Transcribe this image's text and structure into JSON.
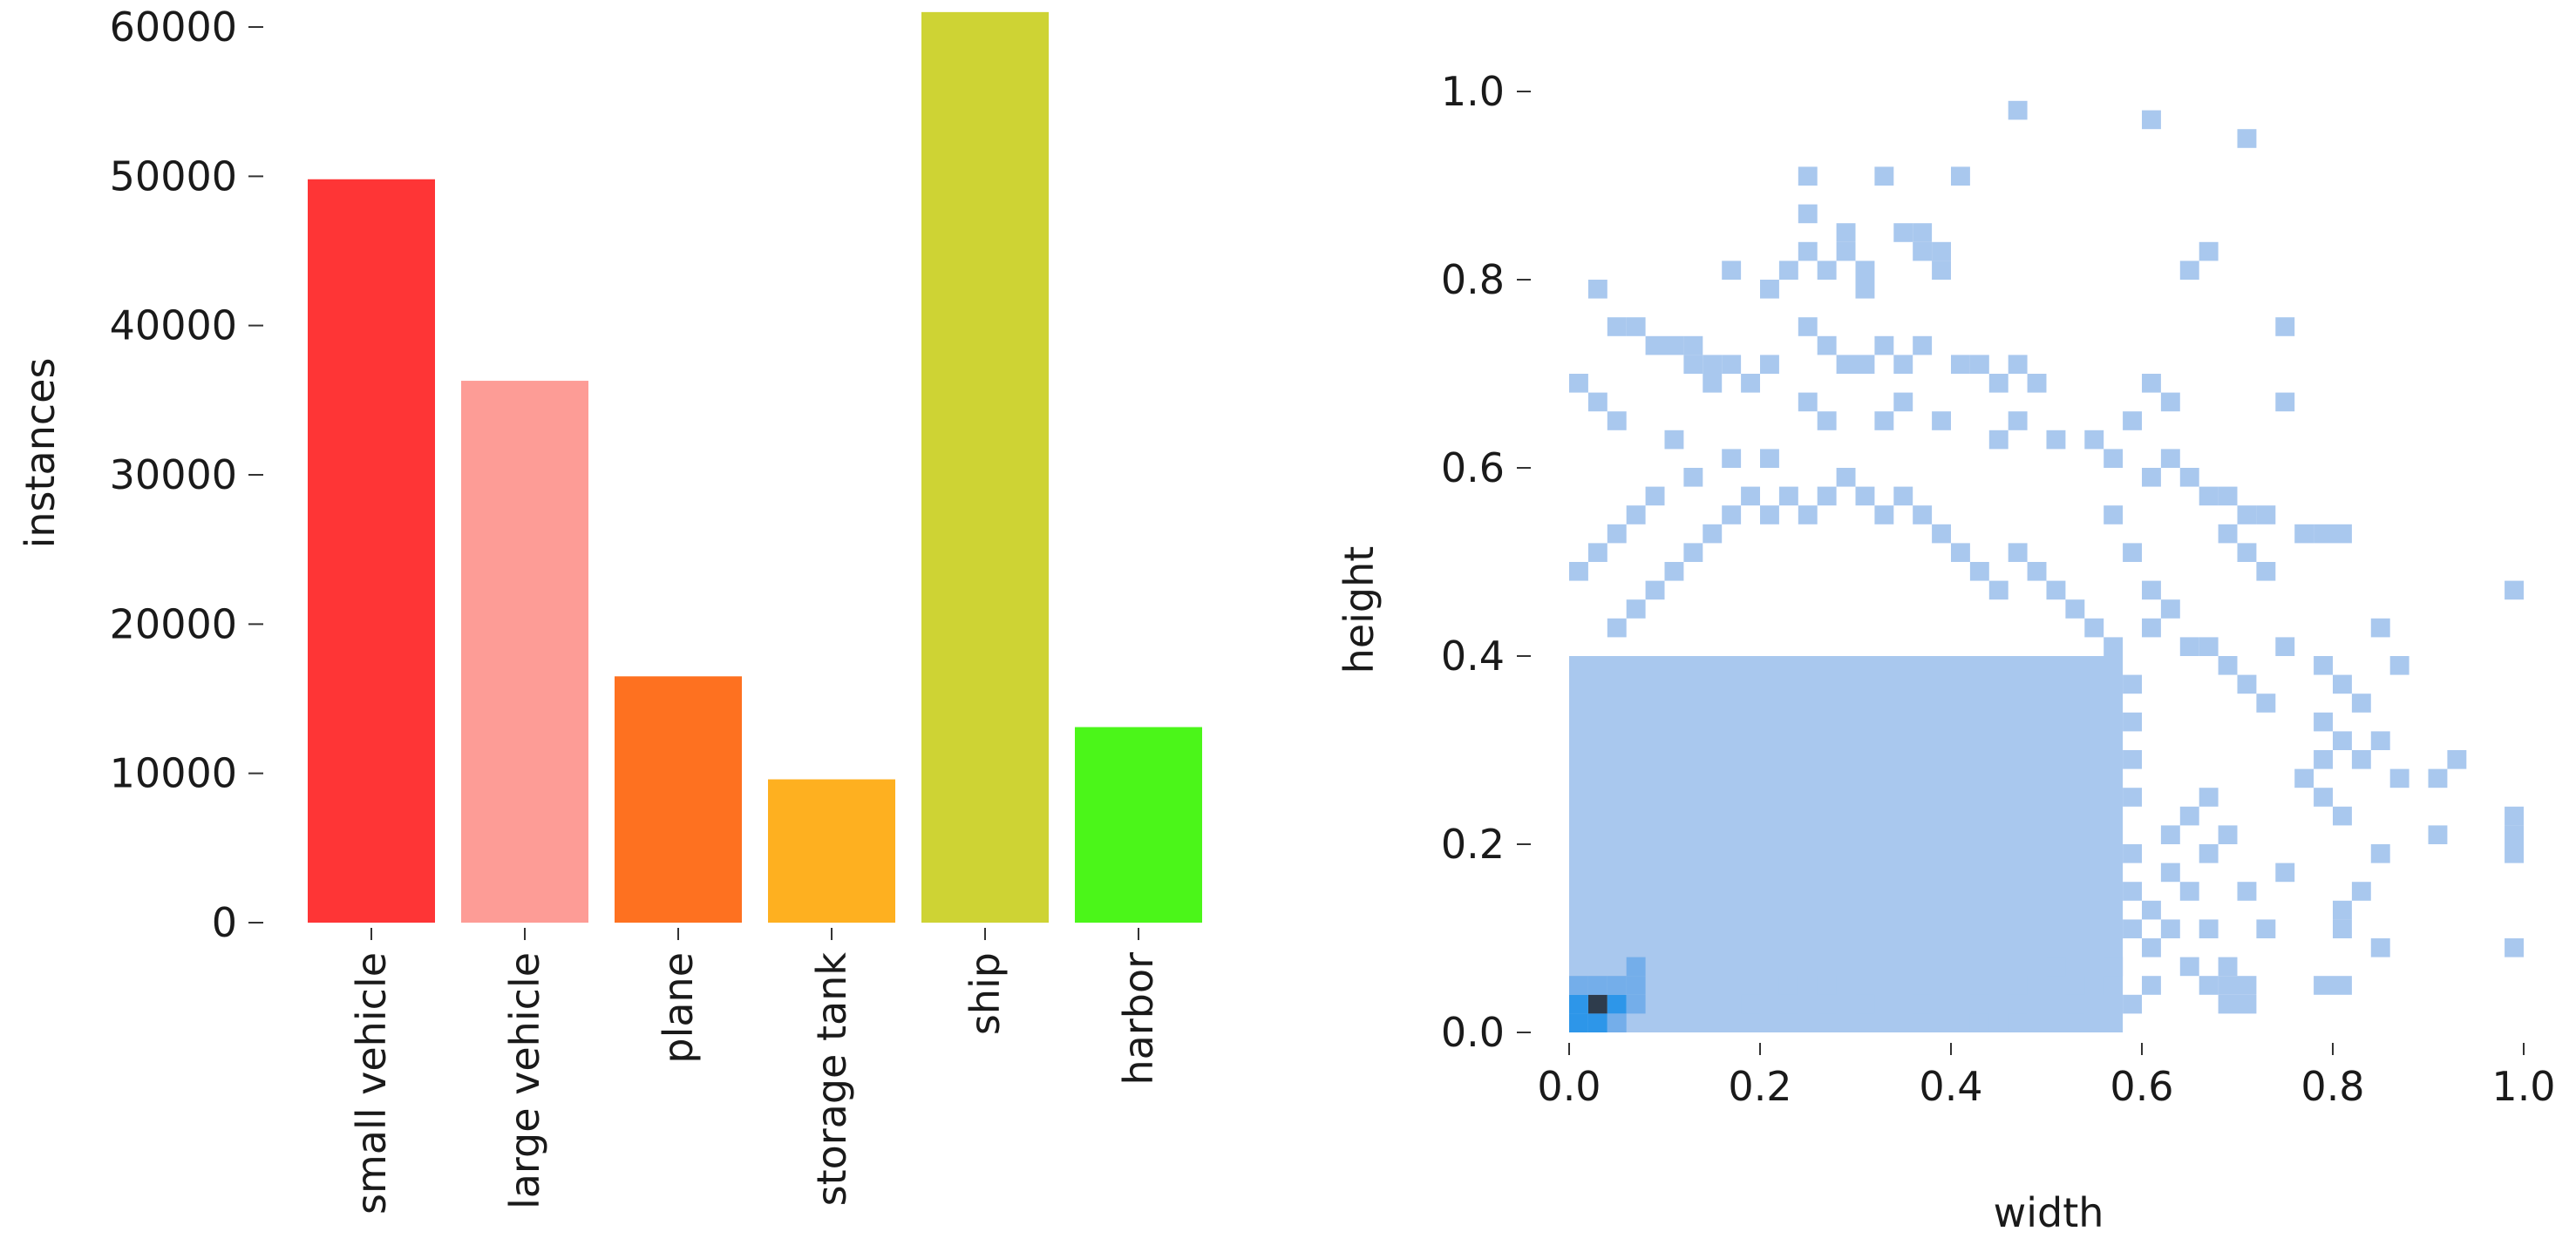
{
  "chart_data": [
    {
      "type": "bar",
      "ylabel": "instances",
      "xlabel": "",
      "ylim": [
        0,
        60000
      ],
      "yticks": [
        "0",
        "10000",
        "20000",
        "30000",
        "40000",
        "50000",
        "60000"
      ],
      "grid": false,
      "categories": [
        "small vehicle",
        "large vehicle",
        "plane",
        "storage tank",
        "ship",
        "harbor"
      ],
      "values": [
        49800,
        36300,
        16500,
        9600,
        61000,
        13100
      ],
      "colors": [
        "#fe3536",
        "#fd9c96",
        "#fe7120",
        "#feb020",
        "#ced334",
        "#4bf619"
      ]
    },
    {
      "type": "heatmap",
      "xlabel": "width",
      "ylabel": "height",
      "xlim": [
        0,
        1
      ],
      "ylim": [
        0,
        1
      ],
      "xticks": [
        "0.0",
        "0.2",
        "0.4",
        "0.6",
        "0.8",
        "1.0"
      ],
      "yticks": [
        "0.0",
        "0.2",
        "0.4",
        "0.6",
        "0.8",
        "1.0"
      ],
      "grid": false,
      "bins": 50,
      "colors": {
        "low": "#a9c8ee",
        "mid": "#74aeea",
        "high": "#2d96e9",
        "peak": "#2e3c4c"
      },
      "dense_region": {
        "x": [
          0,
          0.58
        ],
        "y": [
          0,
          0.4
        ],
        "density": "low"
      },
      "hotspot": [
        {
          "x": 0.03,
          "y": 0.03,
          "density": "peak"
        },
        {
          "x": 0.05,
          "y": 0.03,
          "density": "high"
        },
        {
          "x": 0.01,
          "y": 0.01,
          "density": "high"
        },
        {
          "x": 0.03,
          "y": 0.05,
          "density": "mid"
        },
        {
          "x": 0.05,
          "y": 0.05,
          "density": "mid"
        },
        {
          "x": 0.07,
          "y": 0.05,
          "density": "mid"
        },
        {
          "x": 0.01,
          "y": 0.03,
          "density": "high"
        },
        {
          "x": 0.03,
          "y": 0.01,
          "density": "high"
        },
        {
          "x": 0.05,
          "y": 0.01,
          "density": "mid"
        },
        {
          "x": 0.07,
          "y": 0.03,
          "density": "mid"
        },
        {
          "x": 0.01,
          "y": 0.05,
          "density": "mid"
        },
        {
          "x": 0.07,
          "y": 0.07,
          "density": "mid"
        }
      ],
      "sparse_cells": [
        [
          0.47,
          0.98
        ],
        [
          0.61,
          0.97
        ],
        [
          0.71,
          0.95
        ],
        [
          0.33,
          0.91
        ],
        [
          0.41,
          0.91
        ],
        [
          0.25,
          0.91
        ],
        [
          0.25,
          0.87
        ],
        [
          0.35,
          0.85
        ],
        [
          0.37,
          0.85
        ],
        [
          0.37,
          0.83
        ],
        [
          0.39,
          0.83
        ],
        [
          0.39,
          0.81
        ],
        [
          0.29,
          0.85
        ],
        [
          0.29,
          0.83
        ],
        [
          0.31,
          0.81
        ],
        [
          0.31,
          0.79
        ],
        [
          0.25,
          0.83
        ],
        [
          0.17,
          0.81
        ],
        [
          0.23,
          0.81
        ],
        [
          0.21,
          0.79
        ],
        [
          0.27,
          0.81
        ],
        [
          0.67,
          0.83
        ],
        [
          0.65,
          0.81
        ],
        [
          0.03,
          0.79
        ],
        [
          0.05,
          0.75
        ],
        [
          0.07,
          0.75
        ],
        [
          0.09,
          0.73
        ],
        [
          0.11,
          0.73
        ],
        [
          0.13,
          0.73
        ],
        [
          0.13,
          0.71
        ],
        [
          0.15,
          0.71
        ],
        [
          0.17,
          0.71
        ],
        [
          0.15,
          0.69
        ],
        [
          0.19,
          0.69
        ],
        [
          0.21,
          0.71
        ],
        [
          0.25,
          0.75
        ],
        [
          0.27,
          0.73
        ],
        [
          0.29,
          0.71
        ],
        [
          0.31,
          0.71
        ],
        [
          0.33,
          0.73
        ],
        [
          0.35,
          0.71
        ],
        [
          0.37,
          0.73
        ],
        [
          0.41,
          0.71
        ],
        [
          0.43,
          0.71
        ],
        [
          0.45,
          0.69
        ],
        [
          0.47,
          0.71
        ],
        [
          0.49,
          0.69
        ],
        [
          0.75,
          0.75
        ],
        [
          0.75,
          0.67
        ],
        [
          0.61,
          0.69
        ],
        [
          0.63,
          0.67
        ],
        [
          0.59,
          0.65
        ],
        [
          0.01,
          0.69
        ],
        [
          0.03,
          0.67
        ],
        [
          0.05,
          0.65
        ],
        [
          0.11,
          0.63
        ],
        [
          0.25,
          0.67
        ],
        [
          0.27,
          0.65
        ],
        [
          0.33,
          0.65
        ],
        [
          0.35,
          0.67
        ],
        [
          0.39,
          0.65
        ],
        [
          0.45,
          0.63
        ],
        [
          0.47,
          0.65
        ],
        [
          0.51,
          0.63
        ],
        [
          0.55,
          0.63
        ],
        [
          0.57,
          0.61
        ],
        [
          0.63,
          0.61
        ],
        [
          0.61,
          0.59
        ],
        [
          0.65,
          0.59
        ],
        [
          0.67,
          0.57
        ],
        [
          0.69,
          0.57
        ],
        [
          0.71,
          0.55
        ],
        [
          0.73,
          0.55
        ],
        [
          0.69,
          0.53
        ],
        [
          0.71,
          0.51
        ],
        [
          0.73,
          0.49
        ],
        [
          0.77,
          0.53
        ],
        [
          0.79,
          0.53
        ],
        [
          0.81,
          0.53
        ],
        [
          0.99,
          0.47
        ],
        [
          0.01,
          0.49
        ],
        [
          0.03,
          0.51
        ],
        [
          0.05,
          0.53
        ],
        [
          0.07,
          0.55
        ],
        [
          0.09,
          0.57
        ],
        [
          0.13,
          0.59
        ],
        [
          0.17,
          0.61
        ],
        [
          0.21,
          0.61
        ],
        [
          0.57,
          0.55
        ],
        [
          0.59,
          0.51
        ],
        [
          0.61,
          0.47
        ],
        [
          0.63,
          0.45
        ],
        [
          0.61,
          0.43
        ],
        [
          0.65,
          0.41
        ],
        [
          0.67,
          0.41
        ],
        [
          0.69,
          0.39
        ],
        [
          0.71,
          0.37
        ],
        [
          0.73,
          0.35
        ],
        [
          0.75,
          0.41
        ],
        [
          0.79,
          0.39
        ],
        [
          0.81,
          0.37
        ],
        [
          0.83,
          0.35
        ],
        [
          0.85,
          0.43
        ],
        [
          0.87,
          0.39
        ],
        [
          0.79,
          0.33
        ],
        [
          0.81,
          0.31
        ],
        [
          0.83,
          0.29
        ],
        [
          0.79,
          0.29
        ],
        [
          0.77,
          0.27
        ],
        [
          0.79,
          0.25
        ],
        [
          0.81,
          0.23
        ],
        [
          0.85,
          0.31
        ],
        [
          0.87,
          0.27
        ],
        [
          0.91,
          0.27
        ],
        [
          0.93,
          0.29
        ],
        [
          0.91,
          0.21
        ],
        [
          0.99,
          0.23
        ],
        [
          0.99,
          0.21
        ],
        [
          0.99,
          0.19
        ],
        [
          0.85,
          0.19
        ],
        [
          0.83,
          0.15
        ],
        [
          0.81,
          0.13
        ],
        [
          0.81,
          0.11
        ],
        [
          0.85,
          0.09
        ],
        [
          0.99,
          0.09
        ],
        [
          0.75,
          0.17
        ],
        [
          0.73,
          0.11
        ],
        [
          0.71,
          0.15
        ],
        [
          0.69,
          0.21
        ],
        [
          0.67,
          0.25
        ],
        [
          0.65,
          0.23
        ],
        [
          0.67,
          0.19
        ],
        [
          0.65,
          0.15
        ],
        [
          0.67,
          0.11
        ],
        [
          0.69,
          0.07
        ],
        [
          0.67,
          0.05
        ],
        [
          0.69,
          0.05
        ],
        [
          0.71,
          0.05
        ],
        [
          0.69,
          0.03
        ],
        [
          0.71,
          0.03
        ],
        [
          0.79,
          0.05
        ],
        [
          0.81,
          0.05
        ],
        [
          0.63,
          0.21
        ],
        [
          0.63,
          0.17
        ],
        [
          0.61,
          0.13
        ],
        [
          0.63,
          0.11
        ],
        [
          0.65,
          0.07
        ],
        [
          0.61,
          0.09
        ],
        [
          0.59,
          0.11
        ],
        [
          0.61,
          0.05
        ],
        [
          0.57,
          0.07
        ],
        [
          0.59,
          0.03
        ],
        [
          0.53,
          0.03
        ],
        [
          0.49,
          0.05
        ],
        [
          0.47,
          0.03
        ],
        [
          0.45,
          0.01
        ],
        [
          0.43,
          0.03
        ],
        [
          0.41,
          0.01
        ],
        [
          0.59,
          0.15
        ],
        [
          0.59,
          0.19
        ],
        [
          0.59,
          0.25
        ],
        [
          0.59,
          0.29
        ],
        [
          0.59,
          0.33
        ],
        [
          0.59,
          0.37
        ],
        [
          0.57,
          0.41
        ],
        [
          0.55,
          0.43
        ],
        [
          0.53,
          0.45
        ],
        [
          0.51,
          0.47
        ],
        [
          0.49,
          0.49
        ],
        [
          0.47,
          0.51
        ],
        [
          0.45,
          0.47
        ],
        [
          0.43,
          0.49
        ],
        [
          0.41,
          0.51
        ],
        [
          0.39,
          0.53
        ],
        [
          0.37,
          0.55
        ],
        [
          0.35,
          0.57
        ],
        [
          0.33,
          0.55
        ],
        [
          0.31,
          0.57
        ],
        [
          0.29,
          0.59
        ],
        [
          0.27,
          0.57
        ],
        [
          0.25,
          0.55
        ],
        [
          0.23,
          0.57
        ],
        [
          0.21,
          0.55
        ],
        [
          0.19,
          0.57
        ],
        [
          0.17,
          0.55
        ],
        [
          0.15,
          0.53
        ],
        [
          0.13,
          0.51
        ],
        [
          0.11,
          0.49
        ],
        [
          0.09,
          0.47
        ],
        [
          0.07,
          0.45
        ],
        [
          0.05,
          0.43
        ],
        [
          0.55,
          0.05
        ],
        [
          0.51,
          0.07
        ],
        [
          0.37,
          0.03
        ],
        [
          0.33,
          0.05
        ],
        [
          0.31,
          0.03
        ],
        [
          0.29,
          0.05
        ],
        [
          0.27,
          0.03
        ],
        [
          0.25,
          0.05
        ],
        [
          0.23,
          0.03
        ],
        [
          0.21,
          0.05
        ],
        [
          0.19,
          0.03
        ]
      ]
    }
  ]
}
